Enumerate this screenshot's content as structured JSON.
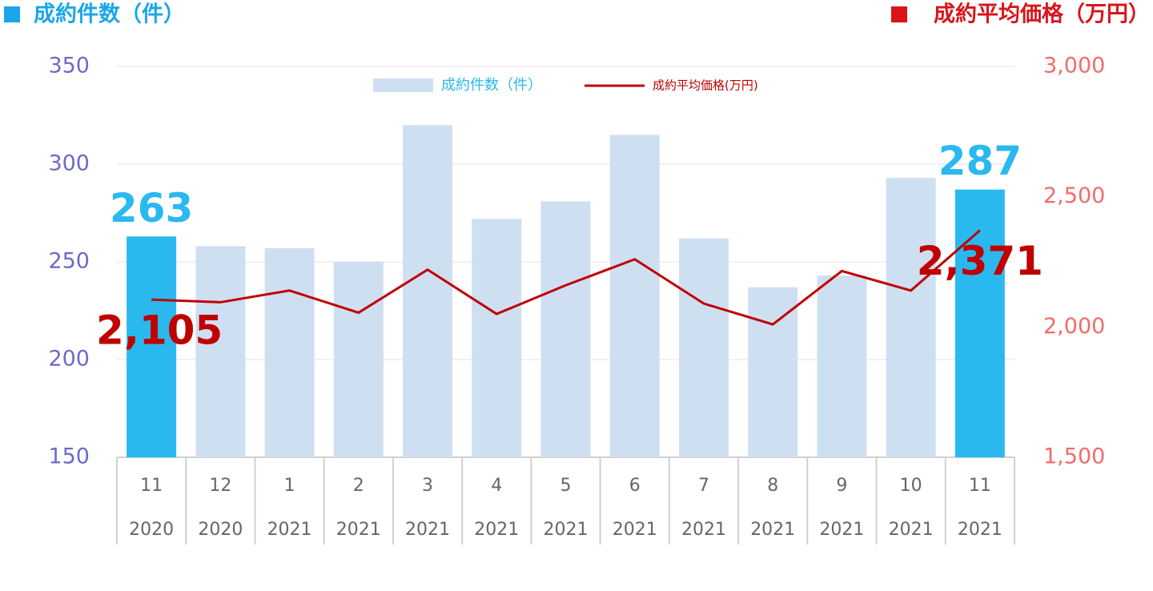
{
  "chart_data": {
    "type": "bar-line",
    "y_label": "成約件数（件）",
    "y2_label": "成約平均価格（万円）",
    "y_label_color": "#1aa6e8",
    "y2_label_color": "#d9151b",
    "categories": [
      "11",
      "12",
      "1",
      "2",
      "3",
      "4",
      "5",
      "6",
      "7",
      "8",
      "9",
      "10",
      "11"
    ],
    "category_years": [
      "2020",
      "2020",
      "2021",
      "2021",
      "2021",
      "2021",
      "2021",
      "2021",
      "2021",
      "2021",
      "2021",
      "2021",
      "2021"
    ],
    "series": [
      {
        "name": "成約件数（件）",
        "type": "bar",
        "color": "#cfdff2",
        "legend_color": "#29b9ee",
        "colors": [
          "#29b9ee",
          "#cfdff2",
          "#cfdff2",
          "#cfdff2",
          "#cfdff2",
          "#cfdff2",
          "#cfdff2",
          "#cfdff2",
          "#cfdff2",
          "#cfdff2",
          "#cfdff2",
          "#cfdff2",
          "#29b9ee"
        ],
        "values": [
          263,
          258,
          257,
          250,
          320,
          272,
          281,
          315,
          262,
          237,
          243,
          293,
          287
        ],
        "value_labels": [
          "263",
          null,
          null,
          null,
          null,
          null,
          null,
          null,
          null,
          null,
          null,
          null,
          "287"
        ],
        "label_color": "#29b9ee"
      },
      {
        "name": "成約平均価格(万円)",
        "type": "line",
        "axis": "y2",
        "color": "#c00000",
        "values": [
          2105,
          2095,
          2140,
          2055,
          2220,
          2050,
          2160,
          2260,
          2090,
          2010,
          2215,
          2140,
          2371
        ],
        "value_labels": [
          "2,105",
          null,
          null,
          null,
          null,
          null,
          null,
          null,
          null,
          null,
          null,
          null,
          "2,371"
        ],
        "label_color": "#c00000"
      }
    ],
    "ylim": [
      150,
      350
    ],
    "yticks": [
      150,
      200,
      250,
      300,
      350
    ],
    "y2lim": [
      1500,
      3000
    ],
    "y2ticks": [
      {
        "value": 1500,
        "label": "1,500"
      },
      {
        "value": 2000,
        "label": "2,000"
      },
      {
        "value": 2500,
        "label": "2,500"
      },
      {
        "value": 3000,
        "label": "3,000"
      }
    ],
    "ytick_color": "#6b6bc8",
    "y2tick_color": "#f26b6b",
    "grid": true,
    "legend": "top"
  }
}
